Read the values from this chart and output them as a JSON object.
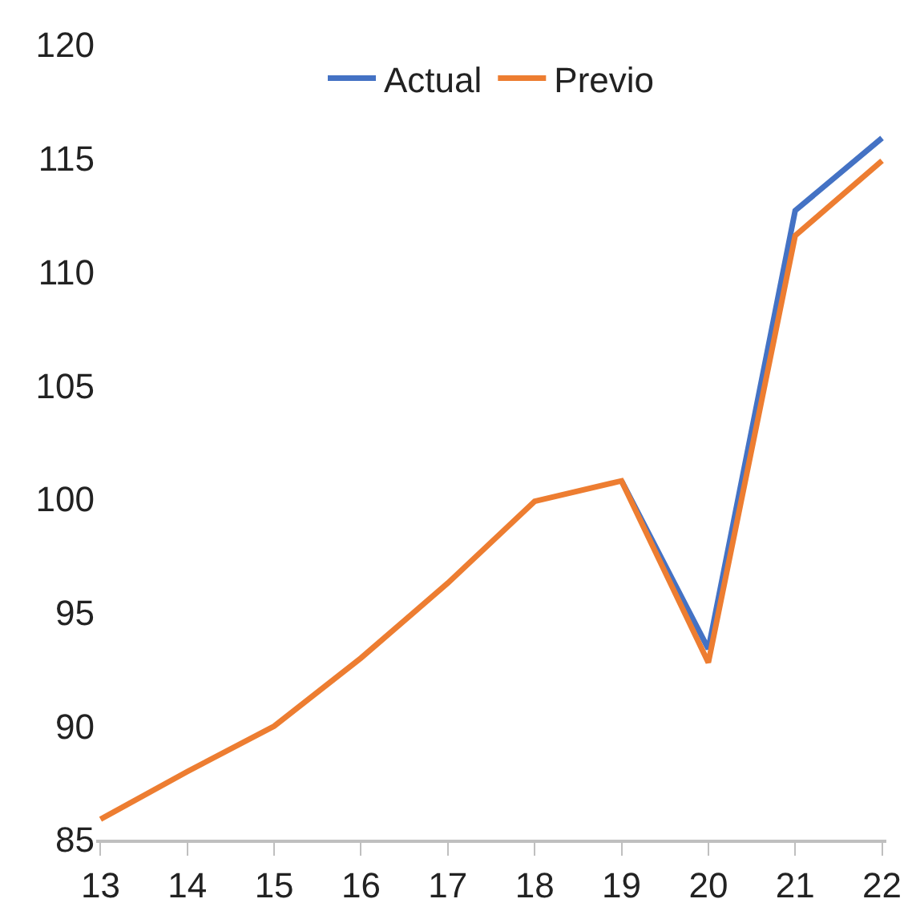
{
  "chart_data": {
    "type": "line",
    "categories": [
      "13",
      "14",
      "15",
      "16",
      "17",
      "18",
      "19",
      "20",
      "21",
      "22"
    ],
    "series": [
      {
        "name": "Actual",
        "color": "#4472c4",
        "values": [
          null,
          null,
          null,
          null,
          null,
          null,
          100.8,
          93.4,
          112.7,
          115.9
        ]
      },
      {
        "name": "Previo",
        "color": "#ed7d31",
        "values": [
          85.9,
          88.0,
          90.0,
          93.0,
          96.3,
          99.9,
          100.8,
          92.8,
          111.6,
          114.9
        ]
      }
    ],
    "ylim": [
      85,
      120
    ],
    "yticks": [
      85,
      90,
      95,
      100,
      105,
      110,
      115,
      120
    ],
    "grid": false,
    "legend": "top",
    "marker": "none",
    "line_style": "solid"
  }
}
